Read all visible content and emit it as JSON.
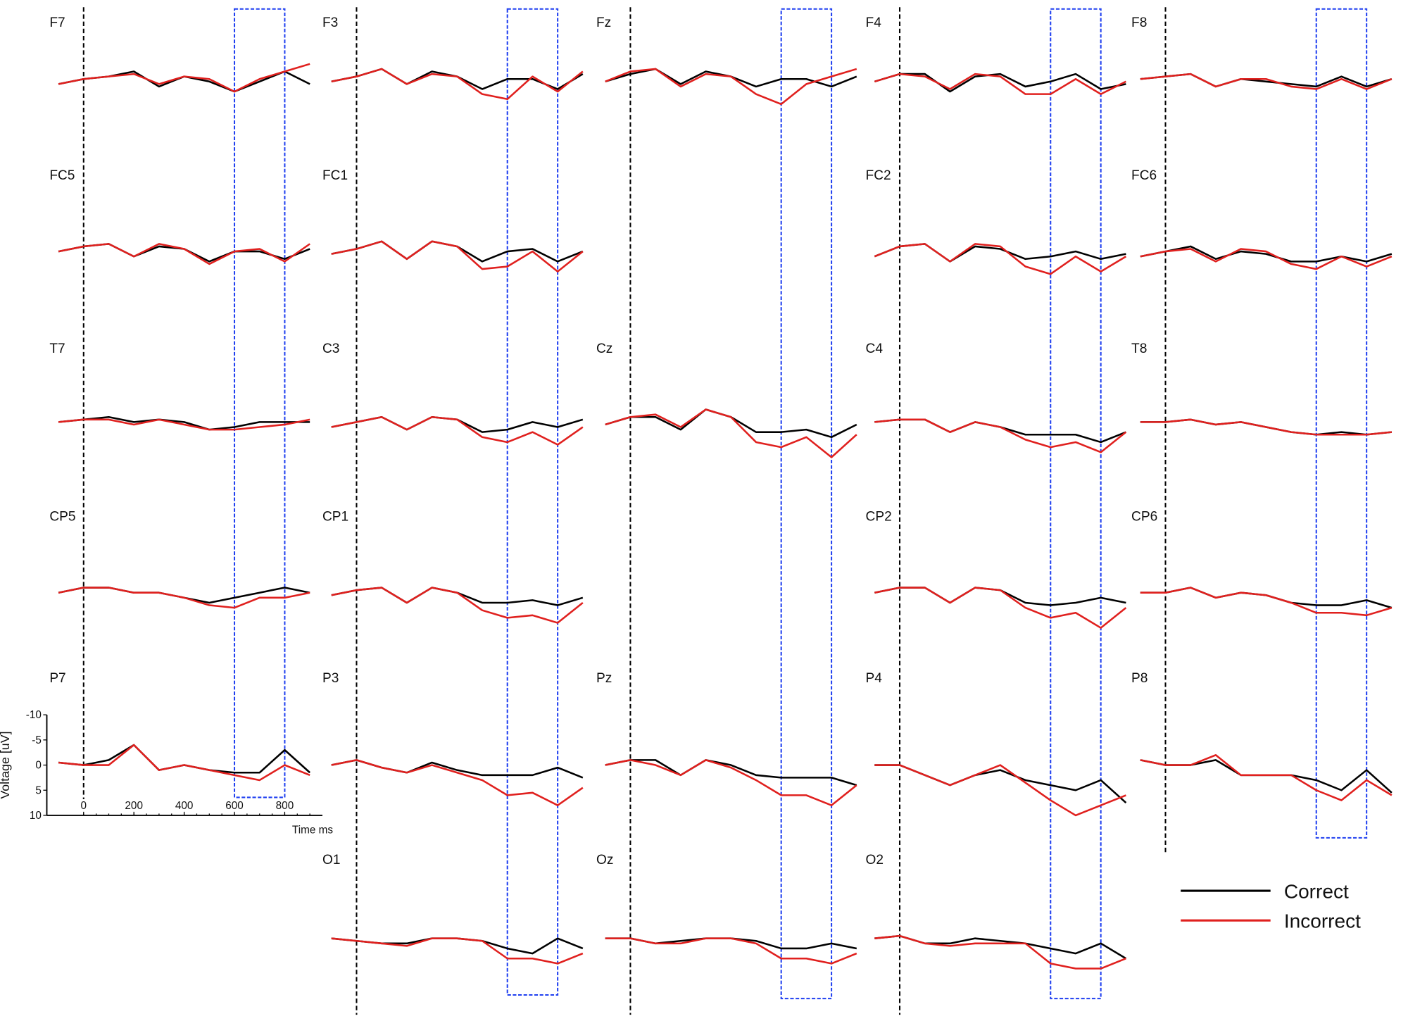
{
  "chart_data": {
    "type": "line",
    "x_label": "Time ms",
    "y_label": "Voltage [uV]",
    "x": [
      -100,
      0,
      100,
      200,
      300,
      400,
      500,
      600,
      700,
      800,
      900
    ],
    "xlim": [
      -100,
      950
    ],
    "xticks": [
      0,
      200,
      400,
      600,
      800
    ],
    "ylim": [
      10,
      -10
    ],
    "yticks": [
      -10,
      -5,
      0,
      5,
      10
    ],
    "window": [
      600,
      800
    ],
    "series": [
      {
        "name": "Correct",
        "color": "#000000"
      },
      {
        "name": "Incorrect",
        "color": "#e0201e"
      }
    ],
    "panels": [
      {
        "label": "F7",
        "correct": [
          1,
          0,
          -0.5,
          -1.5,
          1.5,
          -0.5,
          0.5,
          2.5,
          0.5,
          -1.5,
          1
        ],
        "incorrect": [
          1,
          0,
          -0.5,
          -1,
          1,
          -0.5,
          0,
          2.5,
          0,
          -1.5,
          -3
        ]
      },
      {
        "label": "F3",
        "correct": [
          0.5,
          -0.5,
          -2,
          1,
          -1.5,
          -0.5,
          2,
          0,
          0,
          2,
          -1
        ],
        "incorrect": [
          0.5,
          -0.5,
          -2,
          1,
          -1,
          -0.5,
          3,
          4,
          -0.5,
          2.5,
          -1.5
        ]
      },
      {
        "label": "Fz",
        "correct": [
          0.5,
          -1,
          -2,
          1,
          -1.5,
          -0.5,
          1.5,
          0,
          0,
          1.5,
          -0.5
        ],
        "incorrect": [
          0.5,
          -1.5,
          -2,
          1.5,
          -1,
          -0.5,
          3,
          5,
          1,
          -0.5,
          -2
        ]
      },
      {
        "label": "F4",
        "correct": [
          0.5,
          -1,
          -1,
          2.5,
          -0.5,
          -1,
          1.5,
          0.5,
          -1,
          2,
          1
        ],
        "incorrect": [
          0.5,
          -1,
          -0.5,
          2,
          -1,
          -0.5,
          3,
          3,
          0,
          3,
          0.5
        ]
      },
      {
        "label": "F8",
        "correct": [
          0,
          -0.5,
          -1,
          1.5,
          0,
          0.5,
          1,
          1.5,
          -0.5,
          1.5,
          0
        ],
        "incorrect": [
          0,
          -0.5,
          -1,
          1.5,
          0,
          0,
          1.5,
          2,
          0,
          2,
          0
        ]
      },
      {
        "label": "FC5",
        "correct": [
          0,
          -1,
          -1.5,
          1,
          -1,
          -0.5,
          2,
          0,
          0,
          1.5,
          -0.5
        ],
        "incorrect": [
          0,
          -1,
          -1.5,
          1,
          -1.5,
          -0.5,
          2.5,
          0,
          -0.5,
          2,
          -1.5
        ]
      },
      {
        "label": "FC1",
        "correct": [
          0.5,
          -0.5,
          -2,
          1.5,
          -2,
          -1,
          2,
          0,
          -0.5,
          2,
          0
        ],
        "incorrect": [
          0.5,
          -0.5,
          -2,
          1.5,
          -2,
          -1,
          3.5,
          3,
          0,
          4,
          0
        ]
      },
      {
        "label": "FC2",
        "correct": [
          1,
          -1,
          -1.5,
          2,
          -1,
          -0.5,
          1.5,
          1,
          0,
          1.5,
          0.5
        ],
        "incorrect": [
          1,
          -1,
          -1.5,
          2,
          -1.5,
          -1,
          3,
          4.5,
          1,
          4,
          1
        ]
      },
      {
        "label": "FC6",
        "correct": [
          1,
          0,
          -1,
          1.5,
          0,
          0.5,
          2,
          2,
          1,
          2,
          0.5
        ],
        "incorrect": [
          1,
          0,
          -0.5,
          2,
          -0.5,
          0,
          2.5,
          3.5,
          1,
          3,
          1
        ]
      },
      {
        "label": "T7",
        "correct": [
          0,
          -0.5,
          -1,
          0,
          -0.5,
          0,
          1.5,
          1,
          0,
          0,
          0
        ],
        "incorrect": [
          0,
          -0.5,
          -0.5,
          0.5,
          -0.5,
          0.5,
          1.5,
          1.5,
          1,
          0.5,
          -0.5
        ]
      },
      {
        "label": "C3",
        "correct": [
          1,
          0,
          -1,
          1.5,
          -1,
          -0.5,
          2,
          1.5,
          0,
          1,
          -0.5
        ],
        "incorrect": [
          1,
          0,
          -1,
          1.5,
          -1,
          -0.5,
          3,
          4,
          2,
          4.5,
          1
        ]
      },
      {
        "label": "Cz",
        "correct": [
          0.5,
          -1,
          -1,
          1.5,
          -2.5,
          -1,
          2,
          2,
          1.5,
          3,
          0.5
        ],
        "incorrect": [
          0.5,
          -1,
          -1.5,
          1,
          -2.5,
          -1,
          4,
          5,
          3,
          7,
          2.5
        ]
      },
      {
        "label": "C4",
        "correct": [
          0,
          -0.5,
          -0.5,
          2,
          0,
          1,
          2.5,
          2.5,
          2.5,
          4,
          2
        ],
        "incorrect": [
          0,
          -0.5,
          -0.5,
          2,
          0,
          1,
          3.5,
          5,
          4,
          6,
          2
        ]
      },
      {
        "label": "T8",
        "correct": [
          0,
          0,
          -0.5,
          0.5,
          0,
          1,
          2,
          2.5,
          2,
          2.5,
          2
        ],
        "incorrect": [
          0,
          0,
          -0.5,
          0.5,
          0,
          1,
          2,
          2.5,
          2.5,
          2.5,
          2
        ]
      },
      {
        "label": "CP5",
        "correct": [
          0,
          -1,
          -1,
          0,
          0,
          1,
          2,
          1,
          0,
          -1,
          0
        ],
        "incorrect": [
          0,
          -1,
          -1,
          0,
          0,
          1,
          2.5,
          3,
          1,
          1,
          0
        ]
      },
      {
        "label": "CP1",
        "correct": [
          0.5,
          -0.5,
          -1,
          2,
          -1,
          0,
          2,
          2,
          1.5,
          2.5,
          1
        ],
        "incorrect": [
          0.5,
          -0.5,
          -1,
          2,
          -1,
          0,
          3.5,
          5,
          4.5,
          6,
          2
        ]
      },
      {
        "label": "CP2",
        "correct": [
          0,
          -1,
          -1,
          2,
          -1,
          -0.5,
          2,
          2.5,
          2,
          1,
          2
        ],
        "incorrect": [
          0,
          -1,
          -1,
          2,
          -1,
          -0.5,
          3,
          5,
          4,
          7,
          3
        ]
      },
      {
        "label": "CP6",
        "correct": [
          0,
          0,
          -1,
          1,
          0,
          0.5,
          2,
          2.5,
          2.5,
          1.5,
          3
        ],
        "incorrect": [
          0,
          0,
          -1,
          1,
          0,
          0.5,
          2,
          4,
          4,
          4.5,
          3
        ]
      },
      {
        "label": "P7",
        "correct": [
          -0.5,
          0,
          -1,
          -4,
          1,
          0,
          1,
          1.5,
          1.5,
          -3,
          1.5
        ],
        "incorrect": [
          -0.5,
          0,
          0,
          -4,
          1,
          0,
          1,
          2,
          3,
          0,
          2
        ]
      },
      {
        "label": "P3",
        "correct": [
          0,
          -1,
          0.5,
          1.5,
          -0.5,
          1,
          2,
          2,
          2,
          0.5,
          2.5
        ],
        "incorrect": [
          0,
          -1,
          0.5,
          1.5,
          0,
          1.5,
          3,
          6,
          5.5,
          8,
          4.5
        ]
      },
      {
        "label": "Pz",
        "correct": [
          0,
          -1,
          -1,
          2,
          -1,
          0,
          2,
          2.5,
          2.5,
          2.5,
          4
        ],
        "incorrect": [
          0,
          -1,
          0,
          2,
          -1,
          0.5,
          3,
          6,
          6,
          8,
          4
        ]
      },
      {
        "label": "P4",
        "correct": [
          0,
          0,
          2,
          4,
          2,
          1,
          3,
          4,
          5,
          3,
          7.5
        ],
        "incorrect": [
          0,
          0,
          2,
          4,
          2,
          0,
          3.5,
          7,
          10,
          8,
          6
        ]
      },
      {
        "label": "P8",
        "correct": [
          -1,
          0,
          0,
          -1,
          2,
          2,
          2,
          3,
          5,
          1,
          5.5
        ],
        "incorrect": [
          -1,
          0,
          0,
          -2,
          2,
          2,
          2,
          5,
          7,
          3,
          6
        ]
      },
      {
        "label": "O1",
        "correct": [
          0,
          0.5,
          1,
          1,
          0,
          0,
          0.5,
          2,
          3,
          0,
          2
        ],
        "incorrect": [
          0,
          0.5,
          1,
          1.5,
          0,
          0,
          0.5,
          4,
          4,
          5,
          3
        ]
      },
      {
        "label": "Oz",
        "correct": [
          0,
          0,
          1,
          0.5,
          0,
          0,
          0.5,
          2,
          2,
          1,
          2
        ],
        "incorrect": [
          0,
          0,
          1,
          1,
          0,
          0,
          1,
          4,
          4,
          5,
          3
        ]
      },
      {
        "label": "O2",
        "correct": [
          0,
          -0.5,
          1,
          1,
          0,
          0.5,
          1,
          2,
          3,
          1,
          4
        ],
        "incorrect": [
          0,
          -0.5,
          1,
          1.5,
          1,
          1,
          1,
          5,
          6,
          6,
          4
        ]
      }
    ]
  }
}
